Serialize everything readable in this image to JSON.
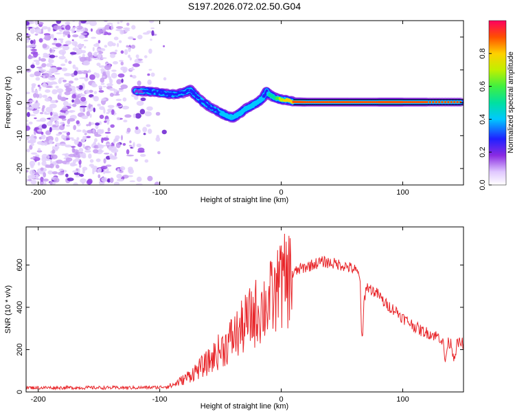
{
  "figure": {
    "title": "S197.2026.072.02.50.G04"
  },
  "chart_data": [
    {
      "type": "heatmap",
      "panel": "spectrogram",
      "xlabel": "Height of straight line (km)",
      "ylabel": "Frequency (Hz)",
      "xlim": [
        -210,
        150
      ],
      "ylim": [
        -25,
        25
      ],
      "xticks": [
        -200,
        -100,
        0,
        100
      ],
      "yticks": [
        -20,
        -10,
        0,
        10,
        20
      ],
      "colorbar": {
        "label": "Normalized spectral amplitude",
        "range": [
          0,
          1
        ],
        "ticks": [
          0.0,
          0.2,
          0.4,
          0.6,
          0.8
        ],
        "tick_labels": [
          "0.0",
          "0.2",
          "0.4",
          "0.6",
          "0.8"
        ]
      },
      "ridge": {
        "x": [
          -120,
          -110,
          -100,
          -90,
          -80,
          -75,
          -70,
          -60,
          -50,
          -45,
          -40,
          -35,
          -30,
          -25,
          -20,
          -15,
          -12,
          -10,
          -5,
          0,
          5,
          10,
          20,
          40,
          60,
          80,
          90,
          100,
          120,
          150
        ],
        "freq": [
          3.5,
          3.5,
          3.0,
          2.5,
          3.0,
          4.0,
          2.0,
          -1.0,
          -3.0,
          -4.0,
          -4.5,
          -3.5,
          -2.0,
          -1.0,
          0.0,
          1.5,
          3.5,
          2.5,
          1.5,
          1.0,
          0.8,
          0.3,
          0.2,
          0.2,
          0.2,
          0.2,
          0.2,
          0.2,
          0.2,
          0.2
        ],
        "amplitude": [
          0.25,
          0.3,
          0.3,
          0.3,
          0.35,
          0.4,
          0.35,
          0.35,
          0.4,
          0.45,
          0.5,
          0.4,
          0.4,
          0.45,
          0.4,
          0.4,
          0.35,
          0.5,
          0.55,
          0.75,
          0.85,
          0.9,
          0.95,
          0.95,
          0.95,
          0.95,
          0.95,
          0.95,
          0.95,
          0.95
        ]
      },
      "noise_region_x": [
        -210,
        -90
      ]
    },
    {
      "type": "line",
      "panel": "snr",
      "xlabel": "Height of straight line (km)",
      "ylabel": "SNR (10 * v/v)",
      "xlim": [
        -210,
        150
      ],
      "ylim": [
        0,
        780
      ],
      "xticks": [
        -200,
        -100,
        0,
        100
      ],
      "yticks": [
        0,
        200,
        400,
        600
      ],
      "series": [
        {
          "name": "SNR",
          "color": "#e8262a",
          "x": [
            -210,
            -200,
            -180,
            -160,
            -140,
            -120,
            -100,
            -90,
            -80,
            -75,
            -70,
            -65,
            -60,
            -55,
            -50,
            -45,
            -40,
            -35,
            -30,
            -25,
            -20,
            -15,
            -10,
            -5,
            -3,
            -2,
            0,
            5,
            10,
            15,
            20,
            25,
            30,
            35,
            40,
            45,
            50,
            55,
            60,
            63,
            65,
            66,
            67,
            68,
            70,
            75,
            80,
            85,
            90,
            95,
            100,
            105,
            110,
            115,
            120,
            125,
            130,
            133,
            135,
            137,
            140,
            142,
            145,
            148,
            150
          ],
          "y": [
            20,
            20,
            20,
            20,
            20,
            20,
            22,
            30,
            60,
            80,
            100,
            120,
            140,
            170,
            200,
            220,
            260,
            280,
            320,
            350,
            380,
            400,
            430,
            450,
            470,
            780,
            500,
            530,
            560,
            580,
            590,
            600,
            610,
            615,
            610,
            605,
            600,
            590,
            580,
            560,
            540,
            260,
            250,
            420,
            500,
            480,
            460,
            420,
            400,
            380,
            350,
            330,
            310,
            290,
            280,
            270,
            260,
            240,
            140,
            230,
            230,
            160,
            230,
            230,
            230
          ]
        }
      ]
    }
  ]
}
